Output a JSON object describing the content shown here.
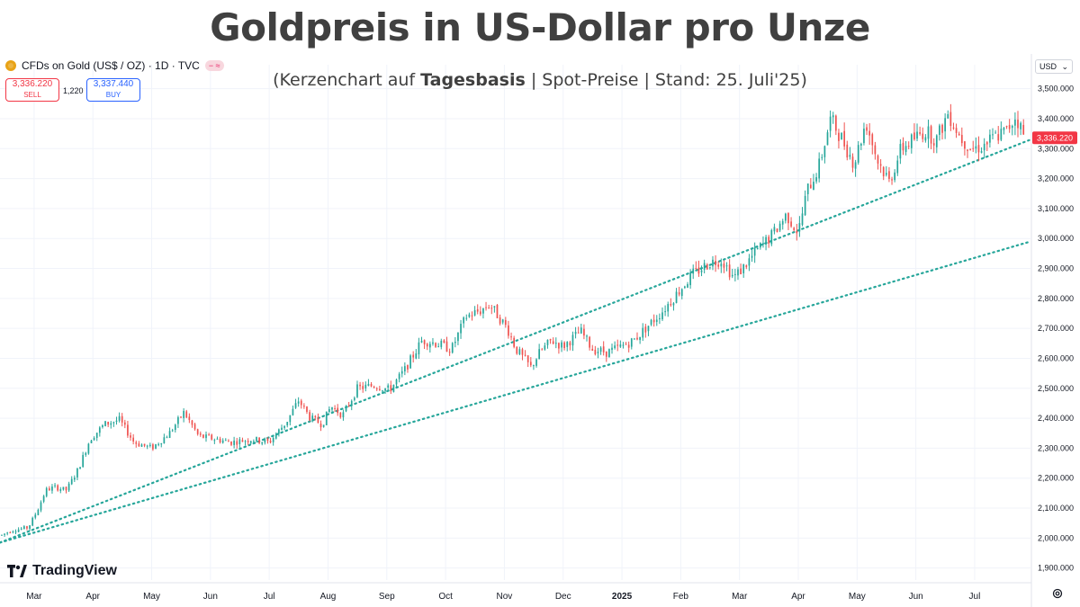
{
  "title": "Goldpreis in US-Dollar pro Unze",
  "subtitle": {
    "prefix": "(Kerzenchart auf ",
    "bold": "Tagesbasis",
    "suffix": " | Spot-Preise | Stand: 25. Juli'25)"
  },
  "symbol": {
    "icon": "gold-coin-icon",
    "name": "CFDs on Gold (US$ / OZ) · 1D · TVC",
    "sell_price": "3,336.220",
    "sell_label": "SELL",
    "spread": "1,220",
    "buy_price": "3,337.440",
    "buy_label": "BUY"
  },
  "currency_selector": {
    "value": "USD"
  },
  "branding": "TradingView",
  "colors": {
    "up": "#26a69a",
    "down": "#ef5350",
    "trendline": "#26a69a",
    "price_label_bg": "#f23645",
    "grid": "#f0f3fa",
    "axis_text": "#131722"
  },
  "chart_data": {
    "type": "candlestick",
    "y_axis": {
      "ticks": [
        1900,
        2000,
        2100,
        2200,
        2300,
        2400,
        2500,
        2600,
        2700,
        2800,
        2900,
        3000,
        3100,
        3200,
        3300,
        3400,
        3500
      ],
      "tick_labels": [
        "1,900.000",
        "2,000.000",
        "2,100.000",
        "2,200.000",
        "2,300.000",
        "2,400.000",
        "2,500.000",
        "2,600.000",
        "2,700.000",
        "2,800.000",
        "2,900.000",
        "3,000.000",
        "3,100.000",
        "3,200.000",
        "3,300.000",
        "3,400.000",
        "3,500.000"
      ],
      "range": [
        1860,
        3520
      ]
    },
    "x_axis": {
      "labels": [
        "Mar",
        "Apr",
        "May",
        "Jun",
        "Jul",
        "Aug",
        "Sep",
        "Oct",
        "Nov",
        "Dec",
        "2025",
        "Feb",
        "Mar",
        "Apr",
        "May",
        "Jun",
        "Jul"
      ],
      "bold_labels": [
        "2025"
      ],
      "label_positions_month_index": [
        1,
        2,
        3,
        4,
        5,
        6,
        7,
        8,
        9,
        10,
        11,
        12,
        13,
        14,
        15,
        16,
        17
      ],
      "range_months": [
        0.42,
        17.95
      ]
    },
    "current_price": {
      "value": 3336.22,
      "label": "3,336.220"
    },
    "monthly_anchors": [
      {
        "m": 0.45,
        "p": 2010
      },
      {
        "m": 0.6,
        "p": 2025
      },
      {
        "m": 0.9,
        "p": 2035
      },
      {
        "m": 1.05,
        "p": 2090
      },
      {
        "m": 1.2,
        "p": 2160
      },
      {
        "m": 1.35,
        "p": 2170
      },
      {
        "m": 1.55,
        "p": 2160
      },
      {
        "m": 1.75,
        "p": 2230
      },
      {
        "m": 1.95,
        "p": 2330
      },
      {
        "m": 2.2,
        "p": 2380
      },
      {
        "m": 2.45,
        "p": 2395
      },
      {
        "m": 2.7,
        "p": 2320
      },
      {
        "m": 3.0,
        "p": 2300
      },
      {
        "m": 3.3,
        "p": 2350
      },
      {
        "m": 3.55,
        "p": 2420
      },
      {
        "m": 3.8,
        "p": 2340
      },
      {
        "m": 4.1,
        "p": 2330
      },
      {
        "m": 4.35,
        "p": 2320
      },
      {
        "m": 4.7,
        "p": 2330
      },
      {
        "m": 5.0,
        "p": 2320
      },
      {
        "m": 5.3,
        "p": 2390
      },
      {
        "m": 5.5,
        "p": 2460
      },
      {
        "m": 5.7,
        "p": 2400
      },
      {
        "m": 5.9,
        "p": 2380
      },
      {
        "m": 6.05,
        "p": 2440
      },
      {
        "m": 6.25,
        "p": 2410
      },
      {
        "m": 6.5,
        "p": 2500
      },
      {
        "m": 6.8,
        "p": 2510
      },
      {
        "m": 7.05,
        "p": 2495
      },
      {
        "m": 7.3,
        "p": 2560
      },
      {
        "m": 7.6,
        "p": 2660
      },
      {
        "m": 7.85,
        "p": 2650
      },
      {
        "m": 8.1,
        "p": 2630
      },
      {
        "m": 8.35,
        "p": 2740
      },
      {
        "m": 8.6,
        "p": 2760
      },
      {
        "m": 8.75,
        "p": 2780
      },
      {
        "m": 8.9,
        "p": 2740
      },
      {
        "m": 9.05,
        "p": 2700
      },
      {
        "m": 9.2,
        "p": 2630
      },
      {
        "m": 9.45,
        "p": 2570
      },
      {
        "m": 9.6,
        "p": 2620
      },
      {
        "m": 9.8,
        "p": 2660
      },
      {
        "m": 10.0,
        "p": 2640
      },
      {
        "m": 10.3,
        "p": 2690
      },
      {
        "m": 10.5,
        "p": 2630
      },
      {
        "m": 10.75,
        "p": 2620
      },
      {
        "m": 11.0,
        "p": 2640
      },
      {
        "m": 11.2,
        "p": 2660
      },
      {
        "m": 11.45,
        "p": 2710
      },
      {
        "m": 11.7,
        "p": 2760
      },
      {
        "m": 11.95,
        "p": 2820
      },
      {
        "m": 12.2,
        "p": 2880
      },
      {
        "m": 12.5,
        "p": 2920
      },
      {
        "m": 12.7,
        "p": 2930
      },
      {
        "m": 12.9,
        "p": 2870
      },
      {
        "m": 13.05,
        "p": 2900
      },
      {
        "m": 13.3,
        "p": 2960
      },
      {
        "m": 13.55,
        "p": 3010
      },
      {
        "m": 13.8,
        "p": 3080
      },
      {
        "m": 14.0,
        "p": 3020
      },
      {
        "m": 14.15,
        "p": 3160
      },
      {
        "m": 14.35,
        "p": 3240
      },
      {
        "m": 14.55,
        "p": 3400
      },
      {
        "m": 14.75,
        "p": 3330
      },
      {
        "m": 14.95,
        "p": 3250
      },
      {
        "m": 15.15,
        "p": 3390
      },
      {
        "m": 15.35,
        "p": 3260
      },
      {
        "m": 15.55,
        "p": 3190
      },
      {
        "m": 15.75,
        "p": 3300
      },
      {
        "m": 15.95,
        "p": 3330
      },
      {
        "m": 16.15,
        "p": 3360
      },
      {
        "m": 16.35,
        "p": 3330
      },
      {
        "m": 16.55,
        "p": 3420
      },
      {
        "m": 16.75,
        "p": 3340
      },
      {
        "m": 16.95,
        "p": 3300
      },
      {
        "m": 17.15,
        "p": 3310
      },
      {
        "m": 17.35,
        "p": 3340
      },
      {
        "m": 17.55,
        "p": 3360
      },
      {
        "m": 17.7,
        "p": 3410
      },
      {
        "m": 17.85,
        "p": 3336
      }
    ],
    "trendlines": [
      {
        "name": "",
        "style": "dotted",
        "from": {
          "m": 0.42,
          "p": 1985
        },
        "to": {
          "m": 17.95,
          "p": 3330
        }
      },
      {
        "name": "",
        "style": "dotted",
        "from": {
          "m": 0.42,
          "p": 1985
        },
        "to": {
          "m": 17.95,
          "p": 2990
        }
      }
    ],
    "grid": true,
    "legend": "none"
  }
}
